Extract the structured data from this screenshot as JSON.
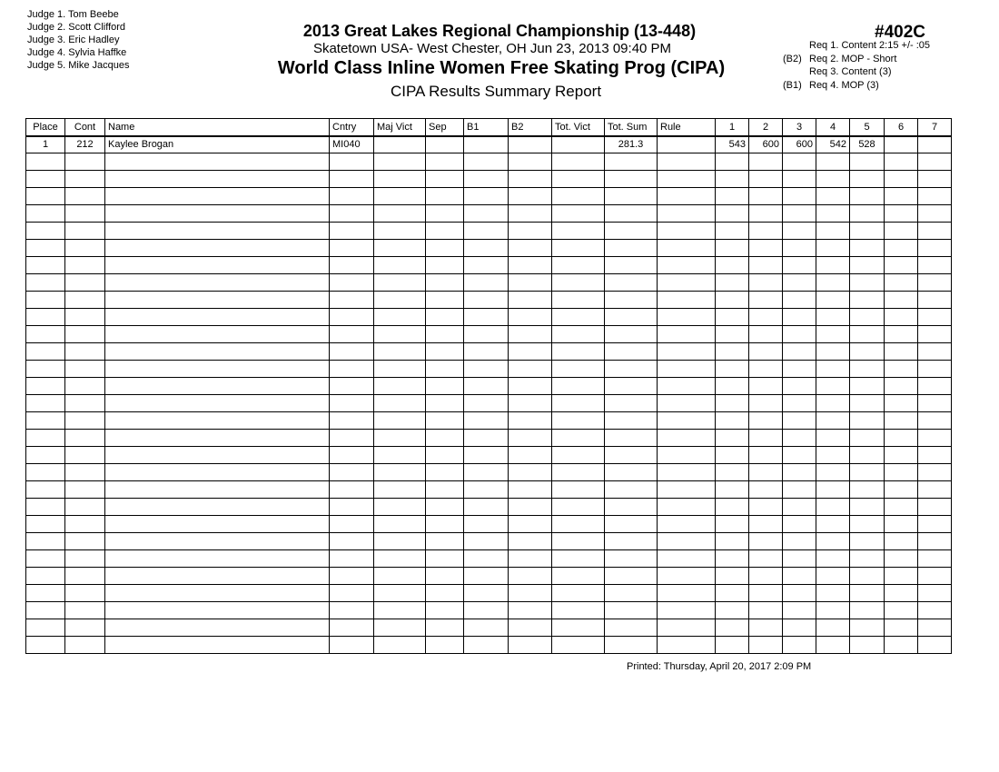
{
  "judges": [
    "Judge  1.  Tom Beebe",
    "Judge  2.  Scott Clifford",
    "Judge  3.  Eric Hadley",
    "Judge  4.  Sylvia  Haffke",
    "Judge  5.  Mike Jacques"
  ],
  "header": {
    "title": "2013 Great Lakes Regional Championship (13-448)",
    "location": "Skatetown USA- West Chester, OH  Jun 23, 2013  09:40 PM",
    "event": "World Class Inline Women Free Skating Prog (CIPA)",
    "report": "CIPA Results Summary Report",
    "code": "#402C"
  },
  "requirements": [
    {
      "prefix": "",
      "text": "Req  1.  Content 2:15 +/- :05"
    },
    {
      "prefix": "(B2)",
      "text": "Req  2.  MOP - Short"
    },
    {
      "prefix": "",
      "text": "Req  3.  Content (3)"
    },
    {
      "prefix": "(B1)",
      "text": "Req  4.  MOP (3)"
    }
  ],
  "table": {
    "columns": [
      "Place",
      "Cont",
      "Name",
      "Cntry",
      "Maj Vict",
      "Sep",
      "B1",
      "B2",
      "Tot. Vict",
      "Tot. Sum",
      "Rule",
      "1",
      "2",
      "3",
      "4",
      "5",
      "6",
      "7"
    ],
    "rows": [
      [
        "1",
        "212",
        "Kaylee Brogan",
        "MI040",
        "",
        "",
        "",
        "",
        "",
        "281.3",
        "",
        "543",
        "600",
        "600",
        "542",
        "528",
        "",
        ""
      ]
    ]
  },
  "footer": {
    "printed": "Printed:  Thursday, April 20, 2017  2:09 PM"
  }
}
